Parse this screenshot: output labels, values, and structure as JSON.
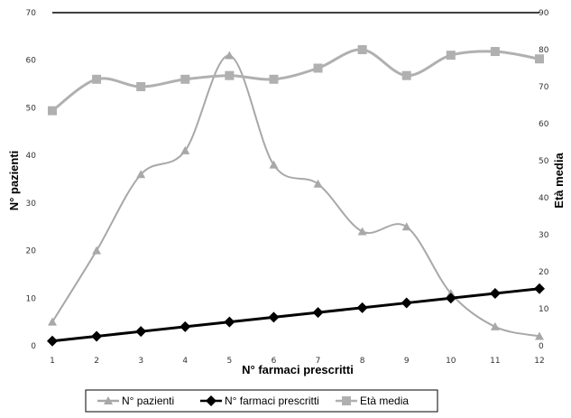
{
  "chart_data": {
    "type": "line",
    "xlabel": "N° farmaci prescritti",
    "ylabel": "N° pazienti",
    "y2label": "Età media",
    "categories": [
      "1",
      "2",
      "3",
      "4",
      "5",
      "6",
      "7",
      "8",
      "9",
      "10",
      "11",
      "12"
    ],
    "ylim": [
      0,
      70
    ],
    "y2lim": [
      0,
      90
    ],
    "yticks": [
      "0",
      "10",
      "20",
      "30",
      "40",
      "50",
      "60",
      "70"
    ],
    "y2ticks": [
      "0",
      "10",
      "20",
      "30",
      "40",
      "50",
      "60",
      "70",
      "80",
      "90"
    ],
    "legend_position": "bottom",
    "grid": false,
    "series": [
      {
        "name": "N° pazienti",
        "axis": "left",
        "color": "#a8a8a8",
        "marker": "triangle",
        "values": [
          5,
          20,
          36,
          41,
          61,
          38,
          34,
          24,
          25,
          11,
          4,
          2
        ]
      },
      {
        "name": "N° farmaci prescritti",
        "axis": "left",
        "color": "#000000",
        "marker": "diamond",
        "values": [
          1,
          2,
          3,
          4,
          5,
          6,
          7,
          8,
          9,
          10,
          11,
          12
        ]
      },
      {
        "name": "Età media",
        "axis": "right",
        "color": "#b0b0b0",
        "marker": "square",
        "values": [
          63.5,
          72,
          70,
          72,
          73,
          72,
          75,
          80,
          73,
          78.5,
          79.5,
          77.5
        ]
      }
    ]
  }
}
